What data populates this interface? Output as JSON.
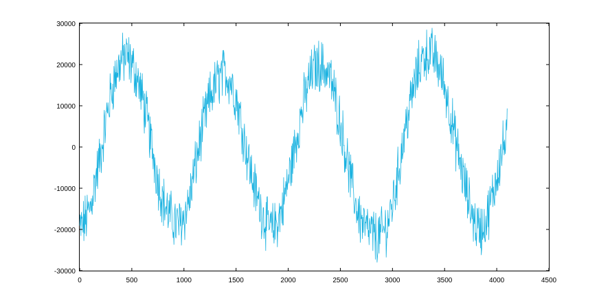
{
  "chart_data": {
    "type": "line",
    "title": "",
    "xlabel": "",
    "ylabel": "",
    "xlim": [
      0,
      4500
    ],
    "ylim": [
      -30000,
      30000
    ],
    "xticks": [
      0,
      500,
      1000,
      1500,
      2000,
      2500,
      3000,
      3500,
      4000,
      4500
    ],
    "yticks": [
      -30000,
      -20000,
      -10000,
      0,
      10000,
      20000,
      30000
    ],
    "xtick_labels": [
      "0",
      "500",
      "1000",
      "1500",
      "2000",
      "2500",
      "3000",
      "3500",
      "4000",
      "4500"
    ],
    "ytick_labels": [
      "-30000",
      "-20000",
      "-10000",
      "0",
      "10000",
      "20000",
      "30000"
    ],
    "grid": false,
    "legend": "none",
    "series": [
      {
        "color": "#1ab2e0",
        "x": [
          0,
          50,
          100,
          150,
          200,
          250,
          300,
          350,
          400,
          450,
          500,
          550,
          600,
          650,
          700,
          750,
          800,
          850,
          900,
          950,
          1000,
          1050,
          1100,
          1150,
          1200,
          1250,
          1300,
          1350,
          1400,
          1450,
          1500,
          1550,
          1600,
          1650,
          1700,
          1750,
          1800,
          1850,
          1900,
          1950,
          2000,
          2050,
          2100,
          2150,
          2200,
          2250,
          2300,
          2350,
          2400,
          2450,
          2500,
          2550,
          2600,
          2650,
          2700,
          2750,
          2800,
          2850,
          2900,
          2950,
          3000,
          3050,
          3100,
          3150,
          3200,
          3250,
          3300,
          3350,
          3400,
          3450,
          3500,
          3550,
          3600,
          3650,
          3700,
          3750,
          3800,
          3850,
          3900,
          3950,
          4000,
          4050,
          4100
        ],
        "y": [
          -20000,
          -18000,
          -15000,
          -8000,
          -2000,
          6000,
          13000,
          18000,
          21000,
          22000,
          20000,
          17000,
          12000,
          6000,
          -1000,
          -8000,
          -13000,
          -16000,
          -18000,
          -19000,
          -17000,
          -13000,
          -6000,
          1000,
          7000,
          12000,
          15000,
          17000,
          18000,
          16000,
          12000,
          6000,
          -1000,
          -7000,
          -12000,
          -16000,
          -19000,
          -20000,
          -18000,
          -14000,
          -8000,
          -2000,
          5000,
          11000,
          16000,
          19000,
          20000,
          19000,
          17000,
          12000,
          6000,
          -1000,
          -8000,
          -14000,
          -18000,
          -20000,
          -21000,
          -22000,
          -21000,
          -19000,
          -14000,
          -7000,
          1000,
          8000,
          14000,
          19000,
          22000,
          23000,
          22000,
          19000,
          15000,
          9000,
          2000,
          -4000,
          -10000,
          -15000,
          -19000,
          -20000,
          -18000,
          -13000,
          -7000,
          -1000,
          3000
        ]
      }
    ]
  }
}
